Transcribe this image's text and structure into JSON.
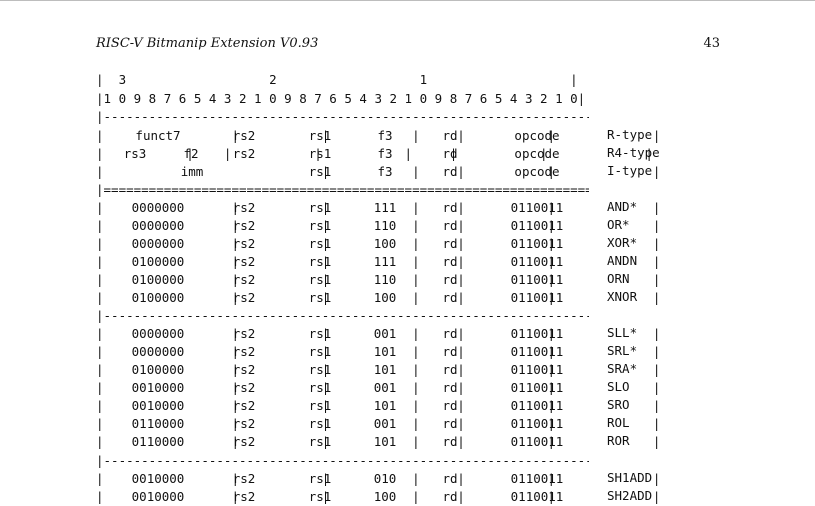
{
  "header": {
    "title": "RISC-V Bitmanip Extension V0.93",
    "page_number": "43"
  },
  "bit_index_lines": [
    "|  3                   2                   1                   |",
    "|1 0 9 8 7 6 5 4 3 2 1 0 9 8 7 6 5 4 3 2 1 0 9 8 7 6 5 4 3 2 1 0|"
  ],
  "format_rows": [
    {
      "cells": [
        "funct7",
        "rs2",
        "rs1",
        "f3",
        "rd",
        "opcode"
      ],
      "label": "R-type"
    },
    {
      "cells": [
        "rs3",
        "f2",
        "rs2",
        "rs1",
        "f3",
        "rd",
        "opcode"
      ],
      "label": "R4-type"
    },
    {
      "cells": [
        "imm",
        "rs1",
        "f3",
        "rd",
        "opcode"
      ],
      "label": "I-type"
    }
  ],
  "groups": [
    {
      "rows": [
        {
          "funct7": "0000000",
          "rs2": "rs2",
          "rs1": "rs1",
          "f3": "111",
          "rd": "rd",
          "opcode": "0110011",
          "name": "AND*"
        },
        {
          "funct7": "0000000",
          "rs2": "rs2",
          "rs1": "rs1",
          "f3": "110",
          "rd": "rd",
          "opcode": "0110011",
          "name": "OR*"
        },
        {
          "funct7": "0000000",
          "rs2": "rs2",
          "rs1": "rs1",
          "f3": "100",
          "rd": "rd",
          "opcode": "0110011",
          "name": "XOR*"
        },
        {
          "funct7": "0100000",
          "rs2": "rs2",
          "rs1": "rs1",
          "f3": "111",
          "rd": "rd",
          "opcode": "0110011",
          "name": "ANDN"
        },
        {
          "funct7": "0100000",
          "rs2": "rs2",
          "rs1": "rs1",
          "f3": "110",
          "rd": "rd",
          "opcode": "0110011",
          "name": "ORN"
        },
        {
          "funct7": "0100000",
          "rs2": "rs2",
          "rs1": "rs1",
          "f3": "100",
          "rd": "rd",
          "opcode": "0110011",
          "name": "XNOR"
        }
      ]
    },
    {
      "rows": [
        {
          "funct7": "0000000",
          "rs2": "rs2",
          "rs1": "rs1",
          "f3": "001",
          "rd": "rd",
          "opcode": "0110011",
          "name": "SLL*"
        },
        {
          "funct7": "0000000",
          "rs2": "rs2",
          "rs1": "rs1",
          "f3": "101",
          "rd": "rd",
          "opcode": "0110011",
          "name": "SRL*"
        },
        {
          "funct7": "0100000",
          "rs2": "rs2",
          "rs1": "rs1",
          "f3": "101",
          "rd": "rd",
          "opcode": "0110011",
          "name": "SRA*"
        },
        {
          "funct7": "0010000",
          "rs2": "rs2",
          "rs1": "rs1",
          "f3": "001",
          "rd": "rd",
          "opcode": "0110011",
          "name": "SLO"
        },
        {
          "funct7": "0010000",
          "rs2": "rs2",
          "rs1": "rs1",
          "f3": "101",
          "rd": "rd",
          "opcode": "0110011",
          "name": "SRO"
        },
        {
          "funct7": "0110000",
          "rs2": "rs2",
          "rs1": "rs1",
          "f3": "001",
          "rd": "rd",
          "opcode": "0110011",
          "name": "ROL"
        },
        {
          "funct7": "0110000",
          "rs2": "rs2",
          "rs1": "rs1",
          "f3": "101",
          "rd": "rd",
          "opcode": "0110011",
          "name": "ROR"
        }
      ]
    },
    {
      "rows": [
        {
          "funct7": "0010000",
          "rs2": "rs2",
          "rs1": "rs1",
          "f3": "010",
          "rd": "rd",
          "opcode": "0110011",
          "name": "SH1ADD"
        },
        {
          "funct7": "0010000",
          "rs2": "rs2",
          "rs1": "rs1",
          "f3": "100",
          "rd": "rd",
          "opcode": "0110011",
          "name": "SH2ADD"
        }
      ]
    }
  ]
}
